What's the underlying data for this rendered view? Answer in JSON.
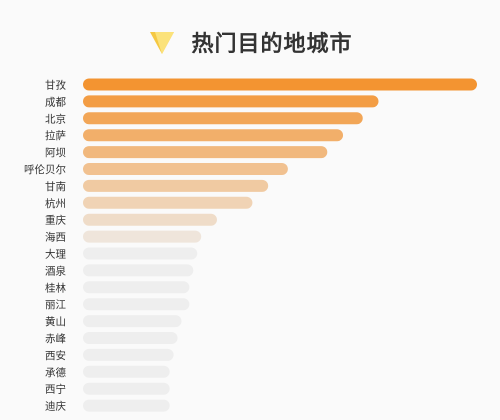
{
  "header": {
    "title": "热门目的地城市",
    "icon": "down-triangle-icon"
  },
  "colors": {
    "top": "#f39431",
    "bottom": "#eeeeee",
    "background": "#fafafa"
  },
  "chart_data": {
    "type": "bar",
    "orientation": "horizontal",
    "title": "热门目的地城市",
    "categories": [
      "甘孜",
      "成都",
      "北京",
      "拉萨",
      "阿坝",
      "呼伦贝尔",
      "甘南",
      "杭州",
      "重庆",
      "海西",
      "大理",
      "酒泉",
      "桂林",
      "丽江",
      "黄山",
      "赤峰",
      "西安",
      "承德",
      "西宁",
      "迪庆"
    ],
    "values": [
      100,
      75,
      71,
      66,
      62,
      52,
      47,
      43,
      34,
      30,
      29,
      28,
      27,
      27,
      25,
      24,
      23,
      22,
      22,
      22
    ],
    "xlim": [
      0,
      100
    ],
    "grid": false,
    "legend": "none"
  }
}
